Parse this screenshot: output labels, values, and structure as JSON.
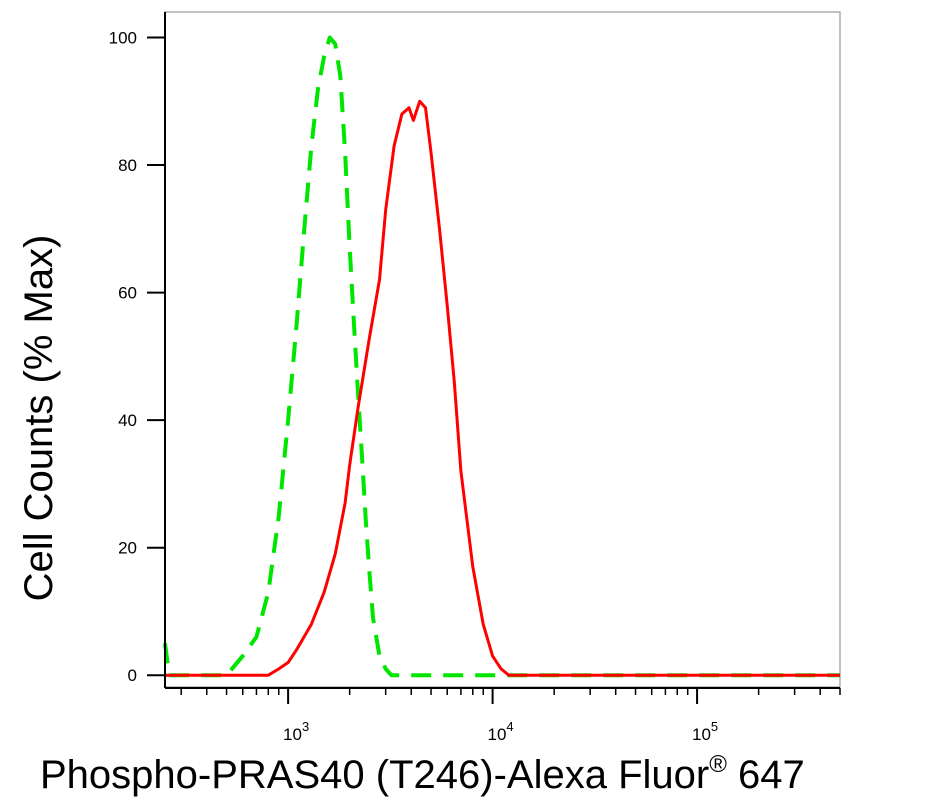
{
  "chart_data": {
    "type": "line",
    "title": "",
    "xlabel": "Phospho-PRAS40 (T246)-Alexa Fluor",
    "xlabel_sup": "®",
    "xlabel_suffix": " 647",
    "ylabel": "Cell Counts (% Max)",
    "xscale": "log",
    "xlim": [
      250,
      500000
    ],
    "ylim": [
      -2,
      104
    ],
    "x_ticks": [
      {
        "value": 1000,
        "base": "10",
        "exp": "3"
      },
      {
        "value": 10000,
        "base": "10",
        "exp": "4"
      },
      {
        "value": 100000,
        "base": "10",
        "exp": "5"
      }
    ],
    "y_ticks": [
      0,
      20,
      40,
      60,
      80,
      100
    ],
    "grid": false,
    "series": [
      {
        "color": "#00e600",
        "style": "dashed",
        "x": [
          250,
          262,
          278,
          300,
          380,
          500,
          600,
          700,
          800,
          900,
          1000,
          1100,
          1200,
          1300,
          1400,
          1500,
          1600,
          1700,
          1800,
          1900,
          2000,
          2100,
          2200,
          2300,
          2400,
          2500,
          2600,
          2800,
          3000,
          3200,
          3500,
          4000,
          5000,
          10000,
          500000
        ],
        "y": [
          5,
          0,
          0,
          0,
          0,
          0,
          3,
          6,
          13,
          25,
          40,
          55,
          70,
          83,
          92,
          97,
          100,
          99,
          94,
          82,
          67,
          55,
          44,
          34,
          24,
          16,
          9,
          3,
          1,
          0,
          0,
          0,
          0,
          0,
          0
        ]
      },
      {
        "color": "#ff0000",
        "style": "solid",
        "x": [
          250,
          700,
          800,
          900,
          1000,
          1100,
          1300,
          1500,
          1700,
          1900,
          2000,
          2200,
          2500,
          2800,
          3000,
          3300,
          3600,
          3900,
          4100,
          4400,
          4700,
          5000,
          5500,
          6000,
          6500,
          7000,
          8000,
          9000,
          10000,
          11000,
          12000,
          14000,
          20000,
          500000
        ],
        "y": [
          0,
          0,
          0,
          1,
          2,
          4,
          8,
          13,
          19,
          27,
          33,
          42,
          53,
          62,
          73,
          83,
          88,
          89,
          87,
          90,
          89,
          82,
          70,
          58,
          46,
          32,
          17,
          8,
          3,
          1,
          0,
          0,
          0,
          0
        ]
      }
    ]
  }
}
